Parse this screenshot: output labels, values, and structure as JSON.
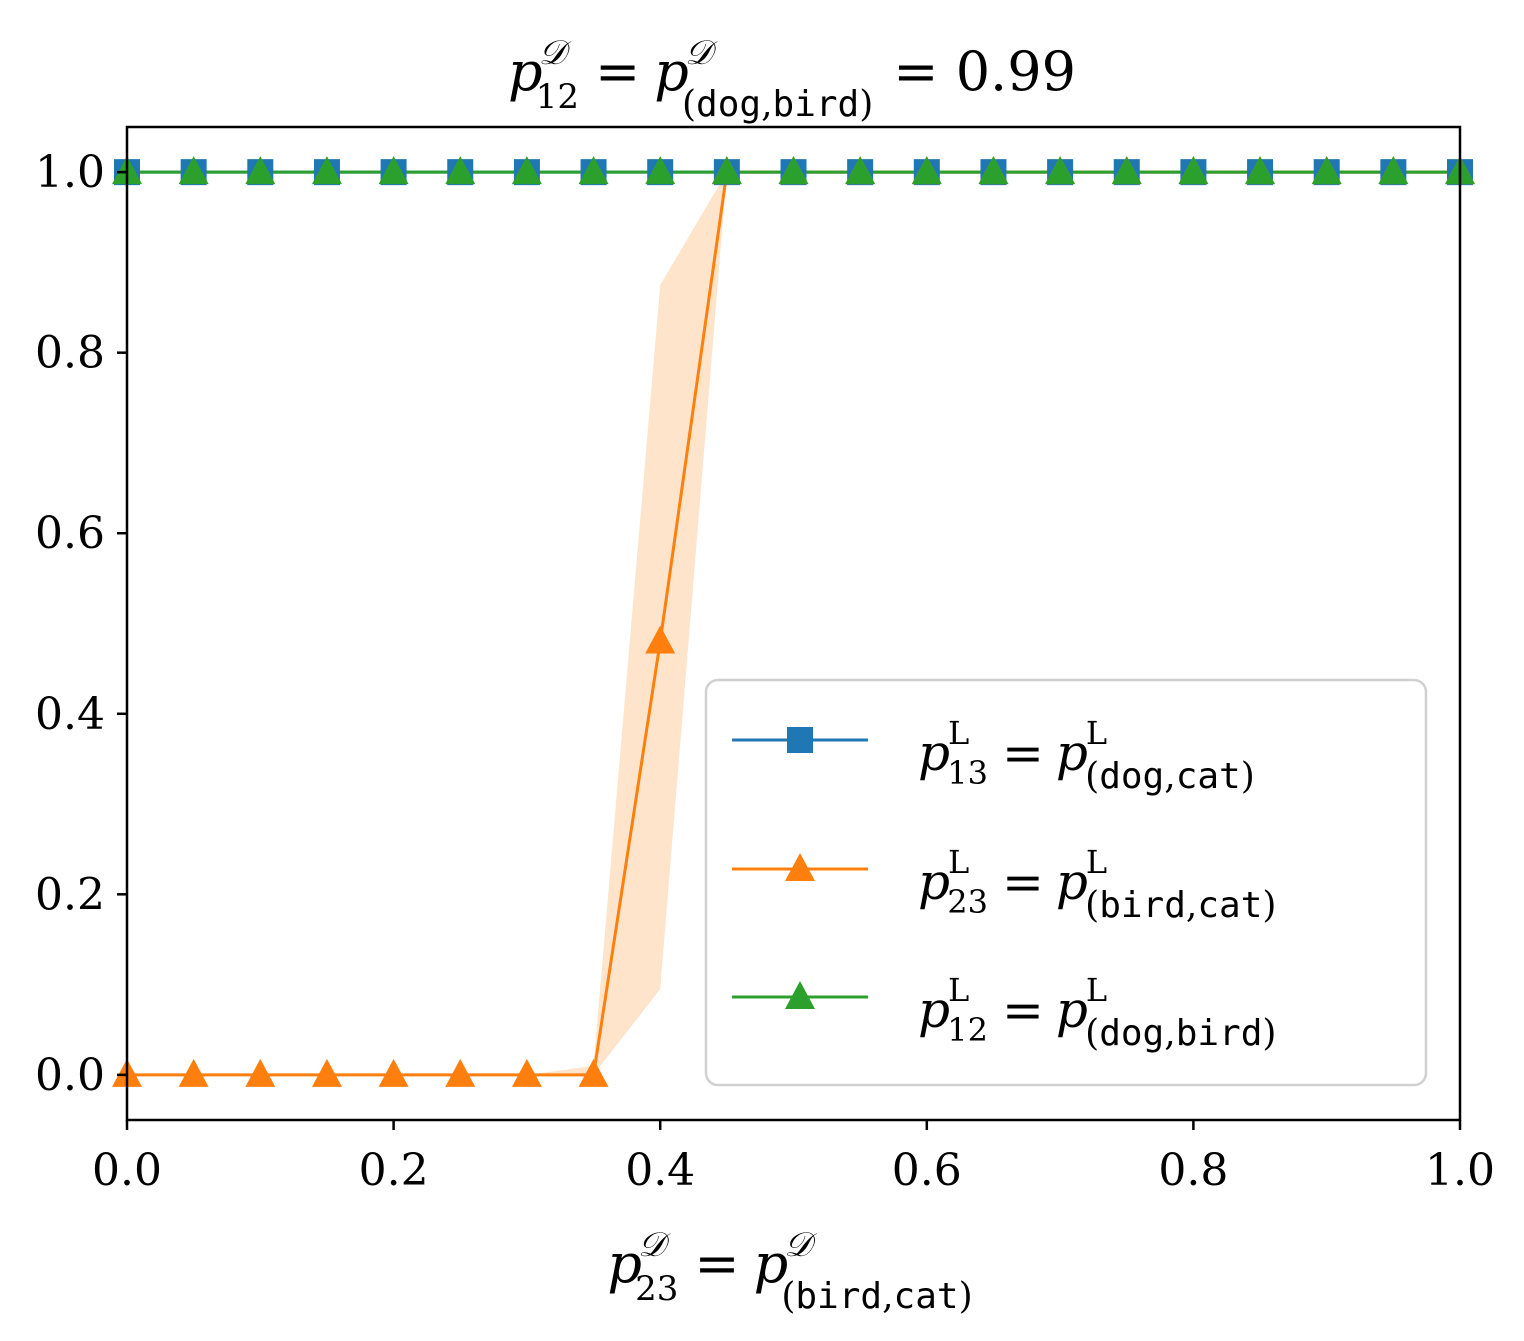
{
  "chart_data": {
    "type": "line",
    "title": {
      "var": "p",
      "sub": "12",
      "sup": "𝒟",
      "eq": "=",
      "sub_open": "(",
      "sub_a": "dog",
      "sub_comma": ",",
      "sub_b": "bird",
      "sub_close": ")",
      "value_text": "= 0.99"
    },
    "xlabel": {
      "var": "p",
      "sub": "23",
      "sup": "𝒟",
      "eq": "=",
      "sub_open": "(",
      "sub_a": "bird",
      "sub_comma": ",",
      "sub_b": "cat",
      "sub_close": ")"
    },
    "ylabel": "",
    "xlim": [
      0.0,
      1.0
    ],
    "ylim": [
      -0.05,
      1.05
    ],
    "x_ticks": [
      "0.0",
      "0.2",
      "0.4",
      "0.6",
      "0.8",
      "1.0"
    ],
    "y_ticks": [
      "0.0",
      "0.2",
      "0.4",
      "0.6",
      "0.8",
      "1.0"
    ],
    "x_tick_values": [
      0.0,
      0.2,
      0.4,
      0.6,
      0.8,
      1.0
    ],
    "y_tick_values": [
      0.0,
      0.2,
      0.4,
      0.6,
      0.8,
      1.0
    ],
    "grid": false,
    "legend_position": "lower-right",
    "x": [
      0.0,
      0.05,
      0.1,
      0.15,
      0.2,
      0.25,
      0.3,
      0.35,
      0.4,
      0.45,
      0.5,
      0.55,
      0.6,
      0.65,
      0.7,
      0.75,
      0.8,
      0.85,
      0.9,
      0.95,
      1.0
    ],
    "series": [
      {
        "name": "p13",
        "color": "#1f77b4",
        "marker": "square",
        "values": [
          1,
          1,
          1,
          1,
          1,
          1,
          1,
          1,
          1,
          1,
          1,
          1,
          1,
          1,
          1,
          1,
          1,
          1,
          1,
          1,
          1
        ],
        "legend": {
          "var": "p",
          "sub": "13",
          "sup": "L",
          "eq": "=",
          "sub_open": "(",
          "sub_a": "dog",
          "sub_comma": ",",
          "sub_b": "cat",
          "sub_close": ")"
        }
      },
      {
        "name": "p23",
        "color": "#ff7f0e",
        "marker": "triangle",
        "values": [
          0,
          0,
          0,
          0,
          0,
          0,
          0,
          0,
          0.48,
          1,
          1,
          1,
          1,
          1,
          1,
          1,
          1,
          1,
          1,
          1,
          1
        ],
        "band_lower": [
          0,
          0,
          0,
          0,
          0,
          0,
          0,
          0,
          0.095,
          1,
          1,
          1,
          1,
          1,
          1,
          1,
          1,
          1,
          1,
          1,
          1
        ],
        "band_upper": [
          0,
          0,
          0,
          0,
          0,
          0,
          0,
          0.01,
          0.875,
          1,
          1,
          1,
          1,
          1,
          1,
          1,
          1,
          1,
          1,
          1,
          1
        ],
        "band_color": "#ffe4cc",
        "legend": {
          "var": "p",
          "sub": "23",
          "sup": "L",
          "eq": "=",
          "sub_open": "(",
          "sub_a": "bird",
          "sub_comma": ",",
          "sub_b": "cat",
          "sub_close": ")"
        }
      },
      {
        "name": "p12",
        "color": "#2ca02c",
        "marker": "triangle",
        "values": [
          1,
          1,
          1,
          1,
          1,
          1,
          1,
          1,
          1,
          1,
          1,
          1,
          1,
          1,
          1,
          1,
          1,
          1,
          1,
          1,
          1
        ],
        "legend": {
          "var": "p",
          "sub": "12",
          "sup": "L",
          "eq": "=",
          "sub_open": "(",
          "sub_a": "dog",
          "sub_comma": ",",
          "sub_b": "bird",
          "sub_close": ")"
        }
      }
    ]
  }
}
